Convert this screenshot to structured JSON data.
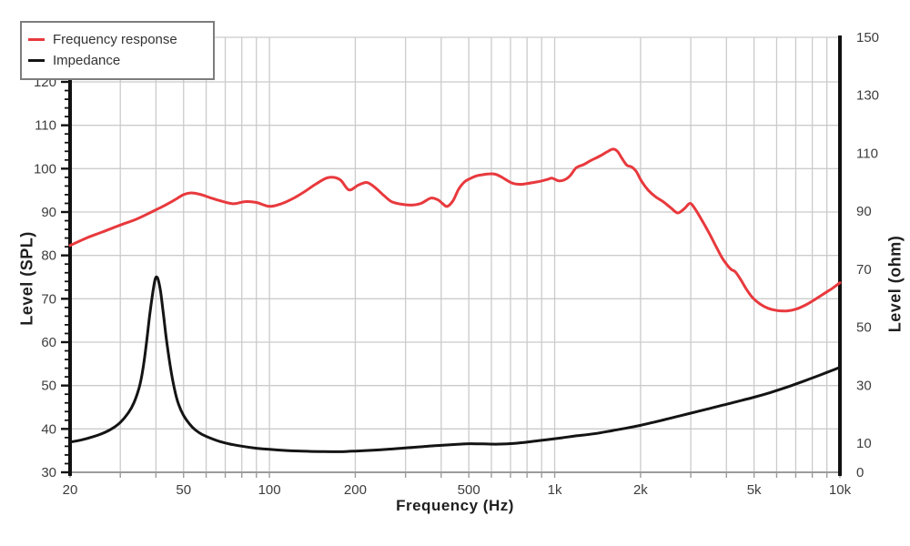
{
  "figure": {
    "background": "#ffffff",
    "grid_color": "#cbcbcb",
    "axis_color": "#111111",
    "bottom_axis_color": "#9b9b9b",
    "tick_label_color": "#3d3d3d"
  },
  "legend": {
    "items": [
      {
        "label": "Frequency response",
        "color": "#e8393d"
      },
      {
        "label": "Impedance",
        "color": "#141414"
      }
    ]
  },
  "chart_data": {
    "type": "line",
    "title": "",
    "xlabel": "Frequency (Hz)",
    "x_axis": {
      "scale": "log",
      "min": 20,
      "max": 10000,
      "tick_values": [
        20,
        50,
        100,
        200,
        500,
        1000,
        2000,
        5000,
        10000
      ],
      "tick_labels": [
        "20",
        "50",
        "100",
        "200",
        "500",
        "1k",
        "2k",
        "5k",
        "10k"
      ]
    },
    "y_left": {
      "label": "Level (SPL)",
      "min": 30,
      "max": 120,
      "tick_step": 10,
      "minor_tick_step": 2,
      "tick_values": [
        30,
        40,
        50,
        60,
        70,
        80,
        90,
        100,
        110,
        120
      ]
    },
    "y_right": {
      "label": "Level (ohm)",
      "min": 0,
      "max": 150,
      "tick_values": [
        0,
        10,
        30,
        50,
        70,
        90,
        110,
        130,
        150
      ]
    },
    "grid": {
      "vertical": "log minor decades 20-10k",
      "horizontal": "every 10 dB",
      "visible": true
    },
    "legend_position": "top-left",
    "series": [
      {
        "name": "Frequency response",
        "axis": "left",
        "color": "#e8393d",
        "unit": "dB SPL",
        "points": [
          [
            20,
            82.3
          ],
          [
            23,
            84.1
          ],
          [
            26,
            85.4
          ],
          [
            30,
            87.0
          ],
          [
            34,
            88.3
          ],
          [
            38,
            89.8
          ],
          [
            42,
            91.2
          ],
          [
            46,
            92.6
          ],
          [
            50,
            94.0
          ],
          [
            53,
            94.4
          ],
          [
            57,
            94.1
          ],
          [
            62,
            93.3
          ],
          [
            68,
            92.5
          ],
          [
            75,
            91.9
          ],
          [
            82,
            92.4
          ],
          [
            90,
            92.2
          ],
          [
            100,
            91.3
          ],
          [
            110,
            91.9
          ],
          [
            120,
            93.0
          ],
          [
            132,
            94.6
          ],
          [
            145,
            96.4
          ],
          [
            158,
            97.8
          ],
          [
            168,
            98.0
          ],
          [
            178,
            97.3
          ],
          [
            190,
            95.1
          ],
          [
            205,
            96.2
          ],
          [
            220,
            96.8
          ],
          [
            235,
            95.6
          ],
          [
            252,
            93.8
          ],
          [
            268,
            92.4
          ],
          [
            290,
            91.8
          ],
          [
            315,
            91.6
          ],
          [
            340,
            92.0
          ],
          [
            368,
            93.2
          ],
          [
            390,
            92.8
          ],
          [
            405,
            91.9
          ],
          [
            420,
            91.3
          ],
          [
            440,
            92.6
          ],
          [
            460,
            95.2
          ],
          [
            482,
            96.9
          ],
          [
            505,
            97.7
          ],
          [
            530,
            98.3
          ],
          [
            560,
            98.6
          ],
          [
            590,
            98.8
          ],
          [
            620,
            98.7
          ],
          [
            650,
            98.1
          ],
          [
            685,
            97.2
          ],
          [
            715,
            96.6
          ],
          [
            750,
            96.4
          ],
          [
            790,
            96.5
          ],
          [
            840,
            96.8
          ],
          [
            890,
            97.1
          ],
          [
            940,
            97.5
          ],
          [
            980,
            97.8
          ],
          [
            1030,
            97.2
          ],
          [
            1080,
            97.4
          ],
          [
            1130,
            98.3
          ],
          [
            1190,
            100.2
          ],
          [
            1260,
            100.9
          ],
          [
            1340,
            101.9
          ],
          [
            1430,
            102.8
          ],
          [
            1520,
            103.8
          ],
          [
            1600,
            104.5
          ],
          [
            1660,
            104.0
          ],
          [
            1720,
            102.4
          ],
          [
            1790,
            100.8
          ],
          [
            1860,
            100.4
          ],
          [
            1930,
            99.4
          ],
          [
            2020,
            97.0
          ],
          [
            2130,
            95.0
          ],
          [
            2260,
            93.5
          ],
          [
            2400,
            92.4
          ],
          [
            2550,
            91.0
          ],
          [
            2700,
            89.8
          ],
          [
            2850,
            90.8
          ],
          [
            2980,
            92.0
          ],
          [
            3100,
            90.8
          ],
          [
            3250,
            88.6
          ],
          [
            3450,
            85.6
          ],
          [
            3650,
            82.5
          ],
          [
            3850,
            79.6
          ],
          [
            4000,
            78.0
          ],
          [
            4150,
            76.8
          ],
          [
            4300,
            76.2
          ],
          [
            4500,
            74.3
          ],
          [
            4700,
            72.2
          ],
          [
            4950,
            70.2
          ],
          [
            5250,
            68.8
          ],
          [
            5600,
            67.8
          ],
          [
            6000,
            67.3
          ],
          [
            6500,
            67.2
          ],
          [
            7000,
            67.6
          ],
          [
            7600,
            68.6
          ],
          [
            8200,
            69.9
          ],
          [
            8900,
            71.4
          ],
          [
            9500,
            72.6
          ],
          [
            10000,
            73.7
          ]
        ]
      },
      {
        "name": "Impedance",
        "axis": "right",
        "color": "#141414",
        "unit": "ohm",
        "points": [
          [
            20,
            10.4
          ],
          [
            22,
            11.2
          ],
          [
            24,
            12.2
          ],
          [
            26,
            13.4
          ],
          [
            28,
            15.0
          ],
          [
            30,
            17.2
          ],
          [
            32,
            20.5
          ],
          [
            33.5,
            24.0
          ],
          [
            35,
            29.5
          ],
          [
            36,
            35.5
          ],
          [
            37,
            44.0
          ],
          [
            38,
            54.0
          ],
          [
            39,
            62.0
          ],
          [
            39.8,
            66.8
          ],
          [
            40.6,
            66.8
          ],
          [
            41.5,
            62.5
          ],
          [
            42.5,
            54.5
          ],
          [
            43.5,
            46.0
          ],
          [
            45,
            36.0
          ],
          [
            46.5,
            28.5
          ],
          [
            48,
            23.5
          ],
          [
            50,
            19.6
          ],
          [
            52.5,
            16.6
          ],
          [
            55,
            14.6
          ],
          [
            58,
            13.1
          ],
          [
            62,
            11.8
          ],
          [
            67,
            10.6
          ],
          [
            73,
            9.7
          ],
          [
            80,
            9.0
          ],
          [
            90,
            8.3
          ],
          [
            100,
            7.9
          ],
          [
            115,
            7.5
          ],
          [
            130,
            7.3
          ],
          [
            150,
            7.15
          ],
          [
            175,
            7.1
          ],
          [
            200,
            7.3
          ],
          [
            230,
            7.6
          ],
          [
            265,
            8.0
          ],
          [
            300,
            8.4
          ],
          [
            350,
            8.9
          ],
          [
            400,
            9.3
          ],
          [
            450,
            9.6
          ],
          [
            500,
            9.85
          ],
          [
            560,
            9.8
          ],
          [
            620,
            9.7
          ],
          [
            700,
            9.9
          ],
          [
            780,
            10.3
          ],
          [
            860,
            10.8
          ],
          [
            950,
            11.3
          ],
          [
            1060,
            11.9
          ],
          [
            1200,
            12.6
          ],
          [
            1400,
            13.4
          ],
          [
            1600,
            14.4
          ],
          [
            1800,
            15.3
          ],
          [
            2000,
            16.2
          ],
          [
            2300,
            17.6
          ],
          [
            2600,
            18.9
          ],
          [
            3000,
            20.4
          ],
          [
            3400,
            21.7
          ],
          [
            3900,
            23.2
          ],
          [
            4400,
            24.5
          ],
          [
            5000,
            25.9
          ],
          [
            5700,
            27.5
          ],
          [
            6500,
            29.3
          ],
          [
            7400,
            31.3
          ],
          [
            8400,
            33.3
          ],
          [
            9200,
            34.8
          ],
          [
            10000,
            36.2
          ]
        ]
      }
    ]
  }
}
